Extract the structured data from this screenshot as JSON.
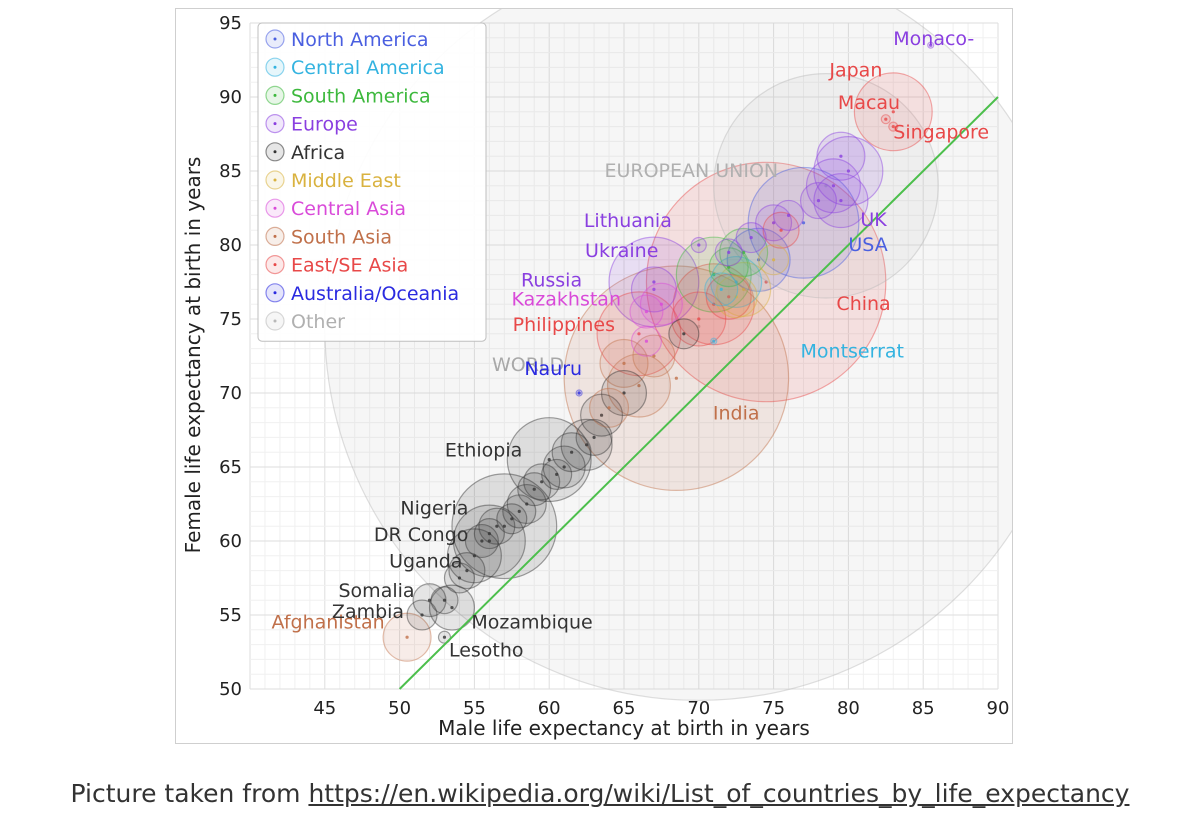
{
  "chart_data": {
    "type": "scatter",
    "xlabel": "Male life expectancy at birth in years",
    "ylabel": "Female life expectancy at birth in years",
    "xlim": [
      40,
      90
    ],
    "ylim": [
      50,
      95
    ],
    "x_ticks": [
      45,
      50,
      55,
      60,
      65,
      70,
      75,
      80,
      85,
      90
    ],
    "y_ticks": [
      50,
      55,
      60,
      65,
      70,
      75,
      80,
      85,
      90,
      95
    ],
    "grid": true,
    "legend_position": "top-left",
    "reference_line": {
      "from": [
        50,
        50
      ],
      "to": [
        90,
        90
      ],
      "color": "#4cbf4c"
    },
    "legend": [
      {
        "name": "North America",
        "color": "#4a5fe0"
      },
      {
        "name": "Central America",
        "color": "#33b3e0"
      },
      {
        "name": "South America",
        "color": "#3cb83c"
      },
      {
        "name": "Europe",
        "color": "#8a3fe0"
      },
      {
        "name": "Africa",
        "color": "#333333"
      },
      {
        "name": "Middle East",
        "color": "#d9b23f"
      },
      {
        "name": "Central Asia",
        "color": "#d94ad9"
      },
      {
        "name": "South Asia",
        "color": "#c0704a"
      },
      {
        "name": "East/SE Asia",
        "color": "#e84848"
      },
      {
        "name": "Australia/Oceania",
        "color": "#2a2ae0"
      },
      {
        "name": "Other",
        "color": "#b8b8b8"
      }
    ],
    "bubbles": [
      {
        "label": "WORLD",
        "group": "Other",
        "x": 70,
        "y": 74.5,
        "r": 25
      },
      {
        "label": "EUROPEAN UNION",
        "group": "Other",
        "x": 78.5,
        "y": 84,
        "r": 7.5
      },
      {
        "label": "India",
        "group": "South Asia",
        "x": 68.5,
        "y": 71,
        "r": 7.5
      },
      {
        "label": "China",
        "group": "East/SE Asia",
        "x": 74.5,
        "y": 77.5,
        "r": 8
      },
      {
        "label": "USA",
        "group": "North America",
        "x": 77,
        "y": 81.5,
        "r": 3.7
      },
      {
        "label": "Japan",
        "group": "East/SE Asia",
        "x": 83,
        "y": 89,
        "r": 2.6
      },
      {
        "label": "Monaco",
        "group": "Europe",
        "x": 85.5,
        "y": 93.5,
        "r": 0.2
      },
      {
        "label": "Macau",
        "group": "East/SE Asia",
        "x": 82.5,
        "y": 88.5,
        "r": 0.3
      },
      {
        "label": "Singapore",
        "group": "East/SE Asia",
        "x": 83,
        "y": 88,
        "r": 0.3
      },
      {
        "label": "UK",
        "group": "Europe",
        "x": 79.5,
        "y": 83,
        "r": 1.8
      },
      {
        "label": "Lithuania",
        "group": "Europe",
        "x": 70,
        "y": 80,
        "r": 0.5
      },
      {
        "label": "Ukraine",
        "group": "Europe",
        "x": 67,
        "y": 77,
        "r": 1.5
      },
      {
        "label": "Russia",
        "group": "Europe",
        "x": 67,
        "y": 77.5,
        "r": 3
      },
      {
        "label": "Kazakhstan",
        "group": "Central Asia",
        "x": 66.5,
        "y": 75.5,
        "r": 1.1
      },
      {
        "label": "Philippines",
        "group": "East/SE Asia",
        "x": 66,
        "y": 74,
        "r": 2.8
      },
      {
        "label": "Nauru",
        "group": "Australia/Oceania",
        "x": 62,
        "y": 70,
        "r": 0.2
      },
      {
        "label": "Montserrat",
        "group": "Central America",
        "x": 71,
        "y": 73.5,
        "r": 0.2
      },
      {
        "label": "Ethiopia",
        "group": "Africa",
        "x": 60,
        "y": 65.5,
        "r": 2.8
      },
      {
        "label": "Nigeria",
        "group": "Africa",
        "x": 57,
        "y": 61,
        "r": 3.5
      },
      {
        "label": "DR Congo",
        "group": "Africa",
        "x": 56,
        "y": 60,
        "r": 2.4
      },
      {
        "label": "Uganda",
        "group": "Africa",
        "x": 55,
        "y": 59,
        "r": 1.8
      },
      {
        "label": "Somalia",
        "group": "Africa",
        "x": 52,
        "y": 56,
        "r": 1.1
      },
      {
        "label": "Zambia",
        "group": "Africa",
        "x": 51.5,
        "y": 55,
        "r": 1
      },
      {
        "label": "Afghanistan",
        "group": "South Asia",
        "x": 50.5,
        "y": 53.5,
        "r": 1.6
      },
      {
        "label": "Mozambique",
        "group": "Africa",
        "x": 53.5,
        "y": 55.5,
        "r": 1.5
      },
      {
        "label": "Lesotho",
        "group": "Africa",
        "x": 53,
        "y": 53.5,
        "r": 0.4
      },
      {
        "label": "",
        "group": "Europe",
        "x": 80,
        "y": 85,
        "r": 2.3
      },
      {
        "label": "",
        "group": "Europe",
        "x": 79,
        "y": 84,
        "r": 1.8
      },
      {
        "label": "",
        "group": "Europe",
        "x": 79.5,
        "y": 86,
        "r": 1.6
      },
      {
        "label": "",
        "group": "Europe",
        "x": 78,
        "y": 83,
        "r": 1.2
      },
      {
        "label": "",
        "group": "Europe",
        "x": 76,
        "y": 82,
        "r": 1
      },
      {
        "label": "",
        "group": "Europe",
        "x": 75,
        "y": 81.5,
        "r": 1.2
      },
      {
        "label": "",
        "group": "Europe",
        "x": 73.5,
        "y": 80.5,
        "r": 1
      },
      {
        "label": "",
        "group": "Europe",
        "x": 72,
        "y": 79.5,
        "r": 0.9
      },
      {
        "label": "",
        "group": "South America",
        "x": 71,
        "y": 78,
        "r": 2.5
      },
      {
        "label": "",
        "group": "South America",
        "x": 73,
        "y": 79.5,
        "r": 1.6
      },
      {
        "label": "",
        "group": "South America",
        "x": 72,
        "y": 78.5,
        "r": 1.3
      },
      {
        "label": "",
        "group": "North America",
        "x": 74,
        "y": 79,
        "r": 2.1
      },
      {
        "label": "",
        "group": "Middle East",
        "x": 73,
        "y": 77,
        "r": 1.8
      },
      {
        "label": "",
        "group": "Middle East",
        "x": 72.5,
        "y": 76.5,
        "r": 1.4
      },
      {
        "label": "",
        "group": "Middle East",
        "x": 75,
        "y": 79,
        "r": 1
      },
      {
        "label": "",
        "group": "East/SE Asia",
        "x": 71,
        "y": 76,
        "r": 2.7
      },
      {
        "label": "",
        "group": "East/SE Asia",
        "x": 70,
        "y": 75,
        "r": 1.8
      },
      {
        "label": "",
        "group": "East/SE Asia",
        "x": 72,
        "y": 76.5,
        "r": 1.5
      },
      {
        "label": "",
        "group": "East/SE Asia",
        "x": 75.5,
        "y": 81,
        "r": 1.2
      },
      {
        "label": "",
        "group": "Central America",
        "x": 72.5,
        "y": 77.5,
        "r": 1.7
      },
      {
        "label": "",
        "group": "Central America",
        "x": 71.5,
        "y": 77,
        "r": 1.1
      },
      {
        "label": "",
        "group": "Central Asia",
        "x": 67.5,
        "y": 76,
        "r": 1.4
      },
      {
        "label": "",
        "group": "Central Asia",
        "x": 66.5,
        "y": 73.5,
        "r": 1
      },
      {
        "label": "",
        "group": "South Asia",
        "x": 66,
        "y": 70.5,
        "r": 2.1
      },
      {
        "label": "",
        "group": "South Asia",
        "x": 65,
        "y": 72,
        "r": 1.6
      },
      {
        "label": "",
        "group": "South Asia",
        "x": 67,
        "y": 72.5,
        "r": 1.4
      },
      {
        "label": "",
        "group": "South Asia",
        "x": 64,
        "y": 69,
        "r": 1.3
      },
      {
        "label": "",
        "group": "Africa",
        "x": 69,
        "y": 74,
        "r": 1
      },
      {
        "label": "",
        "group": "Africa",
        "x": 65,
        "y": 70,
        "r": 1.5
      },
      {
        "label": "",
        "group": "Africa",
        "x": 63.5,
        "y": 68.5,
        "r": 1.4
      },
      {
        "label": "",
        "group": "Africa",
        "x": 63,
        "y": 67,
        "r": 1.2
      },
      {
        "label": "",
        "group": "Africa",
        "x": 62.5,
        "y": 66.5,
        "r": 1.7
      },
      {
        "label": "",
        "group": "Africa",
        "x": 61.5,
        "y": 66,
        "r": 1.3
      },
      {
        "label": "",
        "group": "Africa",
        "x": 61,
        "y": 65,
        "r": 1.4
      },
      {
        "label": "",
        "group": "Africa",
        "x": 60.5,
        "y": 64.5,
        "r": 1
      },
      {
        "label": "",
        "group": "Africa",
        "x": 59.5,
        "y": 64,
        "r": 1.2
      },
      {
        "label": "",
        "group": "Africa",
        "x": 59,
        "y": 63.5,
        "r": 1.1
      },
      {
        "label": "",
        "group": "Africa",
        "x": 58.5,
        "y": 62.5,
        "r": 1.3
      },
      {
        "label": "",
        "group": "Africa",
        "x": 58,
        "y": 62,
        "r": 1.1
      },
      {
        "label": "",
        "group": "Africa",
        "x": 57.5,
        "y": 61.5,
        "r": 1
      },
      {
        "label": "",
        "group": "Africa",
        "x": 56.5,
        "y": 61,
        "r": 1.2
      },
      {
        "label": "",
        "group": "Africa",
        "x": 56,
        "y": 60.5,
        "r": 1
      },
      {
        "label": "",
        "group": "Africa",
        "x": 55.5,
        "y": 60,
        "r": 1.1
      },
      {
        "label": "",
        "group": "Africa",
        "x": 54.5,
        "y": 58,
        "r": 1.2
      },
      {
        "label": "",
        "group": "Africa",
        "x": 54,
        "y": 57.5,
        "r": 1
      },
      {
        "label": "",
        "group": "Africa",
        "x": 53,
        "y": 56,
        "r": 0.9
      }
    ]
  },
  "caption": {
    "prefix": "Picture taken from ",
    "link_text": "https://en.wikipedia.org/wiki/List_of_countries_by_life_expectancy"
  }
}
